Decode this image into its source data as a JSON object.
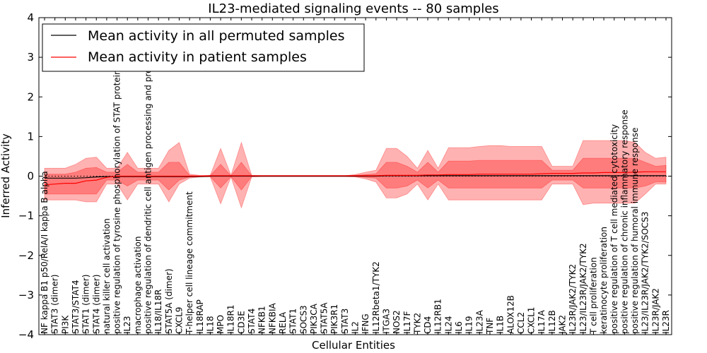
{
  "chart_data": {
    "type": "line",
    "title": "IL23-mediated signaling events -- 80 samples",
    "xlabel": "Cellular Entities",
    "ylabel": "Inferred Activity",
    "ylim": [
      -4,
      4
    ],
    "yticks": [
      -4,
      -3,
      -2,
      -1,
      0,
      1,
      2,
      3,
      4
    ],
    "ytick_labels": [
      "−4",
      "−3",
      "−2",
      "−1",
      "0",
      "1",
      "2",
      "3",
      "4"
    ],
    "legend": {
      "placement": "top-left",
      "entries": [
        {
          "label": "Mean activity in all permuted samples",
          "color": "#000000"
        },
        {
          "label": "Mean activity in patient samples",
          "color": "#ff0000"
        }
      ]
    },
    "colors": {
      "patient": "#ff0000",
      "permuted": "#000000",
      "band": "#ff0000"
    },
    "categories": [
      "NF kappa B1 p50/RelA/I kappa B alpha",
      "STAT3 (dimer)",
      "PI3K",
      "STAT3/STAT4",
      "STAT1 (dimer)",
      "STAT4 (dimer)",
      "natural killer cell activation",
      "positive regulation of tyrosine phosphorylation of STAT protein",
      "IL23",
      "macrophage activation",
      "positive regulation of dendritic cell antigen processing and presentation",
      "IL18/IL18R",
      "STAT5A (dimer)",
      "CXCL9",
      "T-helper cell lineage commitment",
      "IL18RAP",
      "IL18",
      "MPO",
      "IL18R1",
      "CD3E",
      "STAT4",
      "NFKB1",
      "NFKBIA",
      "RELA",
      "STAT1",
      "SOCS3",
      "PIK3CA",
      "STAT5A",
      "PIK3R1",
      "STAT3",
      "IL2",
      "IFNG",
      "IL12Rbeta1/TYK2",
      "ITGA3",
      "NOS2",
      "IL17F",
      "TYK2",
      "CD4",
      "IL12RB1",
      "IL24",
      "IL6",
      "IL19",
      "IL23A",
      "TNF",
      "IL1B",
      "ALOX12B",
      "CCL2",
      "CXCL1",
      "IL17A",
      "IL12B",
      "JAK2",
      "IL23R/JAK2/TYK2",
      "IL23/IL23R/JAK2/TYK2",
      "T cell proliferation",
      "keratinocyte proliferation",
      "positive regulation of T cell mediated cytotoxicity",
      "positive regulation of chronic inflammatory response",
      "positive regulation of humoral immune response",
      "IL23/IL23R/JAK2/TYK2/SOCS3",
      "IL23R/JAK2",
      "IL23R"
    ],
    "series": [
      {
        "name": "Mean activity in all permuted samples",
        "values": [
          -0.05,
          -0.05,
          -0.05,
          -0.05,
          -0.04,
          -0.02,
          -0.01,
          -0.01,
          -0.01,
          -0.01,
          -0.01,
          -0.01,
          -0.01,
          -0.01,
          -0.01,
          -0.01,
          0,
          0,
          0,
          0,
          0,
          0,
          0,
          0,
          0,
          0,
          0,
          0,
          0,
          0,
          0,
          0,
          0,
          0.01,
          0.01,
          0.01,
          0.01,
          0.01,
          0.01,
          0.01,
          0.01,
          0.01,
          0.01,
          0.01,
          0.01,
          0.01,
          0.01,
          0.01,
          0.01,
          0.01,
          0.01,
          0.01,
          0.01,
          0.01,
          0.01,
          0.01,
          0.01,
          0.01,
          0.01,
          0.01,
          0.01
        ]
      },
      {
        "name": "Mean activity in patient samples",
        "values": [
          -0.22,
          -0.2,
          -0.18,
          -0.18,
          -0.12,
          -0.1,
          -0.03,
          0,
          0,
          0,
          0,
          0,
          0,
          0,
          0,
          0,
          0.01,
          0.01,
          0.01,
          0.01,
          0.01,
          0.01,
          0.01,
          0.01,
          0.01,
          0.01,
          0.01,
          0.01,
          0.01,
          0.01,
          0.01,
          0.01,
          0.01,
          0.02,
          0.02,
          0.02,
          0.02,
          0.03,
          0.03,
          0.04,
          0.04,
          0.04,
          0.05,
          0.05,
          0.05,
          0.05,
          0.05,
          0.05,
          0.06,
          0.07,
          0.07,
          0.07,
          0.08,
          0.08,
          0.09,
          0.09,
          0.09,
          0.1,
          0.11,
          0.11,
          0.11
        ]
      }
    ],
    "bands": [
      {
        "name": "outer",
        "lower": [
          -0.6,
          -0.6,
          -0.6,
          -0.6,
          -0.65,
          -0.65,
          -0.2,
          -0.2,
          -0.6,
          -0.2,
          -0.2,
          -0.2,
          -0.65,
          -0.2,
          -0.05,
          -0.02,
          -0.02,
          -0.7,
          -0.02,
          -0.8,
          -0.02,
          -0.01,
          -0.01,
          -0.01,
          -0.01,
          -0.01,
          -0.01,
          -0.01,
          -0.01,
          -0.01,
          -0.02,
          -0.07,
          -0.15,
          -0.55,
          -0.55,
          -0.45,
          -0.2,
          -0.6,
          -0.2,
          -0.6,
          -0.6,
          -0.6,
          -0.6,
          -0.6,
          -0.6,
          -0.6,
          -0.6,
          -0.6,
          -0.6,
          -0.2,
          -0.2,
          -0.2,
          -0.72,
          -0.68,
          -0.68,
          -0.68,
          -0.68,
          -0.68,
          -0.45,
          -0.2,
          -0.2
        ],
        "upper": [
          0.2,
          0.2,
          0.2,
          0.3,
          0.45,
          0.48,
          0.2,
          0.2,
          0.6,
          0.2,
          0.2,
          0.2,
          0.65,
          0.85,
          0.05,
          0.02,
          0.02,
          0.7,
          0.02,
          0.85,
          0.02,
          0.01,
          0.01,
          0.01,
          0.01,
          0.01,
          0.01,
          0.01,
          0.01,
          0.01,
          0.04,
          0.1,
          0.15,
          0.7,
          0.7,
          0.5,
          0.2,
          0.65,
          0.2,
          0.72,
          0.72,
          0.72,
          0.75,
          0.77,
          0.77,
          0.75,
          0.75,
          0.75,
          0.75,
          0.25,
          0.25,
          0.25,
          0.9,
          0.9,
          0.9,
          0.9,
          0.9,
          0.85,
          0.6,
          0.45,
          0.48
        ]
      },
      {
        "name": "inner",
        "lower": [
          -0.45,
          -0.45,
          -0.45,
          -0.45,
          -0.45,
          -0.45,
          -0.1,
          -0.1,
          -0.25,
          -0.1,
          -0.1,
          -0.1,
          -0.35,
          -0.1,
          -0.02,
          -0.01,
          -0.01,
          -0.3,
          -0.01,
          -0.35,
          -0.01,
          -0.01,
          -0.01,
          -0.01,
          -0.01,
          -0.01,
          -0.01,
          -0.01,
          -0.01,
          -0.01,
          -0.01,
          -0.03,
          -0.05,
          -0.3,
          -0.3,
          -0.25,
          -0.1,
          -0.3,
          -0.1,
          -0.3,
          -0.3,
          -0.3,
          -0.3,
          -0.3,
          -0.3,
          -0.3,
          -0.3,
          -0.3,
          -0.3,
          -0.1,
          -0.1,
          -0.1,
          -0.3,
          -0.3,
          -0.3,
          -0.3,
          -0.3,
          -0.3,
          -0.25,
          -0.15,
          -0.15
        ],
        "upper": [
          0.05,
          0.05,
          0.05,
          0.1,
          0.2,
          0.22,
          0.1,
          0.1,
          0.3,
          0.1,
          0.1,
          0.1,
          0.35,
          0.35,
          0.02,
          0.01,
          0.01,
          0.3,
          0.01,
          0.35,
          0.01,
          0.01,
          0.01,
          0.01,
          0.01,
          0.01,
          0.01,
          0.01,
          0.01,
          0.01,
          0.02,
          0.04,
          0.06,
          0.35,
          0.35,
          0.25,
          0.1,
          0.35,
          0.1,
          0.38,
          0.38,
          0.38,
          0.4,
          0.4,
          0.4,
          0.4,
          0.4,
          0.4,
          0.4,
          0.15,
          0.15,
          0.15,
          0.45,
          0.45,
          0.45,
          0.45,
          0.45,
          0.45,
          0.35,
          0.25,
          0.27
        ]
      }
    ]
  }
}
